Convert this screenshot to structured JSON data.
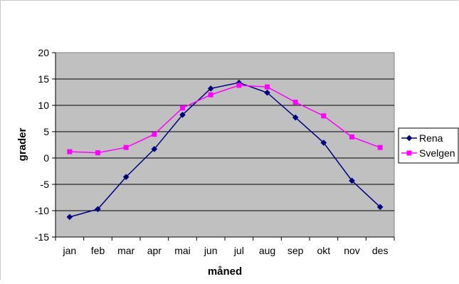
{
  "chart_data": {
    "type": "line",
    "title": "",
    "xlabel": "måned",
    "ylabel": "grader",
    "categories": [
      "jan",
      "feb",
      "mar",
      "apr",
      "mai",
      "jun",
      "jul",
      "aug",
      "sep",
      "okt",
      "nov",
      "des"
    ],
    "ylim": [
      -15,
      20
    ],
    "yticks": [
      "20",
      "15",
      "10",
      "5",
      "0",
      "-5",
      "-10",
      "-15"
    ],
    "grid": true,
    "legend_position": "right",
    "plot_background": "#c0c0c0",
    "series": [
      {
        "name": "Rena",
        "color": "#000080",
        "marker": "diamond",
        "values": [
          -11.2,
          -9.7,
          -3.6,
          1.7,
          8.2,
          13.2,
          14.3,
          12.4,
          7.7,
          2.9,
          -4.3,
          -9.3
        ]
      },
      {
        "name": "Svelgen",
        "color": "#ff00ff",
        "marker": "square",
        "values": [
          1.2,
          1.0,
          2.0,
          4.5,
          9.5,
          12.0,
          13.8,
          13.5,
          10.6,
          8.0,
          4.0,
          2.0
        ]
      }
    ]
  }
}
